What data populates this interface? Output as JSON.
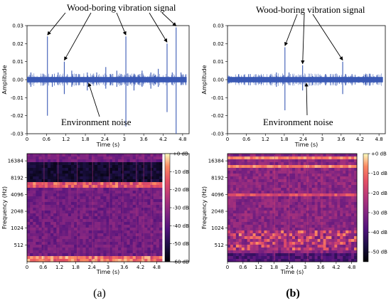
{
  "figure": {
    "panel_a": "(a)",
    "panel_b": "(b)",
    "signal_label": "Wood-boring vibration signal",
    "noise_label": "Environment noise"
  },
  "chart_data": [
    {
      "id": "a_wave",
      "type": "line",
      "title": "",
      "xlabel": "Time (s)",
      "ylabel": "Amplitude",
      "xlim": [
        0,
        5.0
      ],
      "ylim": [
        -0.03,
        0.03
      ],
      "xticks": [
        0,
        0.6,
        1.2,
        1.8,
        2.4,
        3,
        3.6,
        4.2,
        4.8
      ],
      "xtick_labels": [
        "0",
        "0.6",
        "1.2",
        "1.8",
        "2.4",
        "3",
        "3.6",
        "4.2",
        "4.8"
      ],
      "yticks": [
        -0.03,
        -0.02,
        -0.01,
        0.0,
        0.01,
        0.02,
        0.03
      ],
      "ytick_labels": [
        "-0.03",
        "-0.02",
        "-0.01",
        "0.00",
        "0.01",
        "0.02",
        "0.03"
      ],
      "noise_band": [
        -0.0015,
        0.0015
      ],
      "line_color": "#3a59b4",
      "spikes": [
        {
          "x": 0.12,
          "top": 0.004,
          "bottom": -0.004
        },
        {
          "x": 0.52,
          "top": 0.003,
          "bottom": -0.003
        },
        {
          "x": 0.63,
          "top": 0.024,
          "bottom": -0.02
        },
        {
          "x": 0.78,
          "top": 0.003,
          "bottom": -0.004
        },
        {
          "x": 0.96,
          "top": 0.004,
          "bottom": -0.003
        },
        {
          "x": 1.15,
          "top": 0.01,
          "bottom": -0.008
        },
        {
          "x": 1.38,
          "top": 0.005,
          "bottom": -0.004
        },
        {
          "x": 1.62,
          "top": 0.003,
          "bottom": -0.003
        },
        {
          "x": 1.86,
          "top": 0.004,
          "bottom": -0.006
        },
        {
          "x": 2.15,
          "top": 0.004,
          "bottom": -0.003
        },
        {
          "x": 2.43,
          "top": 0.007,
          "bottom": -0.005
        },
        {
          "x": 2.58,
          "top": 0.003,
          "bottom": -0.003
        },
        {
          "x": 2.77,
          "top": 0.005,
          "bottom": -0.004
        },
        {
          "x": 2.9,
          "top": 0.003,
          "bottom": -0.003
        },
        {
          "x": 3.05,
          "top": 0.024,
          "bottom": -0.026
        },
        {
          "x": 3.3,
          "top": 0.003,
          "bottom": -0.006
        },
        {
          "x": 3.55,
          "top": 0.005,
          "bottom": -0.004
        },
        {
          "x": 3.82,
          "top": 0.004,
          "bottom": -0.005
        },
        {
          "x": 4.05,
          "top": 0.006,
          "bottom": -0.004
        },
        {
          "x": 4.32,
          "top": 0.02,
          "bottom": -0.018
        },
        {
          "x": 4.48,
          "top": 0.004,
          "bottom": -0.003
        },
        {
          "x": 4.6,
          "top": 0.029,
          "bottom": -0.03
        },
        {
          "x": 4.75,
          "top": 0.004,
          "bottom": -0.003
        },
        {
          "x": 4.9,
          "top": 0.003,
          "bottom": -0.003
        }
      ],
      "signal_arrow_targets": [
        {
          "x": 0.63,
          "y": 0.024
        },
        {
          "x": 1.15,
          "y": 0.01
        },
        {
          "x": 3.05,
          "y": 0.024
        },
        {
          "x": 4.32,
          "y": 0.02
        },
        {
          "x": 4.6,
          "y": 0.029
        }
      ],
      "noise_arrow_target": {
        "x": 1.9,
        "y": -0.0015
      }
    },
    {
      "id": "b_wave",
      "type": "line",
      "title": "",
      "xlabel": "Time (s)",
      "ylabel": "Amplitude",
      "xlim": [
        0,
        5.0
      ],
      "ylim": [
        -0.03,
        0.03
      ],
      "xticks": [
        0,
        0.6,
        1.2,
        1.8,
        2.4,
        3,
        3.6,
        4.2,
        4.8
      ],
      "xtick_labels": [
        "0",
        "0.6",
        "1.2",
        "1.8",
        "2.4",
        "3",
        "3.6",
        "4.2",
        "4.8"
      ],
      "yticks": [
        -0.03,
        -0.02,
        -0.01,
        0.0,
        0.01,
        0.02,
        0.03
      ],
      "ytick_labels": [
        "-0.03",
        "-0.02",
        "-0.01",
        "0.00",
        "0.01",
        "0.02",
        "0.03"
      ],
      "noise_band": [
        -0.0015,
        0.0015
      ],
      "line_color": "#3a59b4",
      "spikes": [
        {
          "x": 0.35,
          "top": 0.003,
          "bottom": -0.002
        },
        {
          "x": 0.9,
          "top": 0.003,
          "bottom": -0.003
        },
        {
          "x": 1.55,
          "top": 0.004,
          "bottom": -0.004
        },
        {
          "x": 1.82,
          "top": 0.018,
          "bottom": -0.017
        },
        {
          "x": 1.95,
          "top": 0.004,
          "bottom": -0.003
        },
        {
          "x": 2.38,
          "top": 0.008,
          "bottom": -0.006
        },
        {
          "x": 2.7,
          "top": 0.002,
          "bottom": -0.003
        },
        {
          "x": 3.1,
          "top": 0.003,
          "bottom": -0.003
        },
        {
          "x": 3.65,
          "top": 0.01,
          "bottom": -0.008
        },
        {
          "x": 3.75,
          "top": 0.003,
          "bottom": -0.003
        },
        {
          "x": 4.3,
          "top": 0.002,
          "bottom": -0.002
        }
      ],
      "signal_arrow_targets": [
        {
          "x": 1.82,
          "y": 0.018
        },
        {
          "x": 2.38,
          "y": 0.008
        },
        {
          "x": 3.65,
          "y": 0.01
        }
      ],
      "noise_arrow_target": {
        "x": 2.5,
        "y": -0.0015
      }
    },
    {
      "id": "a_spec",
      "type": "heatmap",
      "title": "",
      "xlabel": "Time (s)",
      "ylabel": "Frequency (Hz)",
      "xlim": [
        0,
        5.0
      ],
      "xticks": [
        0,
        0.6,
        1.2,
        1.8,
        2.4,
        3,
        3.6,
        4.2,
        4.8
      ],
      "xtick_labels": [
        "0",
        "0.6",
        "1.2",
        "1.8",
        "2.4",
        "3",
        "3.6",
        "4.2",
        "4.8"
      ],
      "y_scale": "log2",
      "yticks": [
        512,
        1024,
        2048,
        4096,
        8192,
        16384
      ],
      "ytick_labels": [
        "512",
        "1024",
        "2048",
        "4096",
        "8192",
        "16384"
      ],
      "colorbar_ticks": [
        0,
        -10,
        -20,
        -30,
        -40,
        -50,
        -60
      ],
      "colorbar_labels": [
        "+0 dB",
        "-10 dB",
        "-20 dB",
        "-30 dB",
        "-40 dB",
        "-50 dB",
        "-60 dB"
      ],
      "colorbar_range": [
        -60,
        0
      ],
      "bright_rows_hz": [
        8192,
        300
      ],
      "dark_band_hz": [
        9500,
        15000
      ]
    },
    {
      "id": "b_spec",
      "type": "heatmap",
      "title": "",
      "xlabel": "Time (s)",
      "ylabel": "Frequency (Hz)",
      "xlim": [
        0,
        5.0
      ],
      "xticks": [
        0,
        0.6,
        1.2,
        1.8,
        2.4,
        3,
        3.6,
        4.2,
        4.8
      ],
      "xtick_labels": [
        "0",
        "0.6",
        "1.2",
        "1.8",
        "2.4",
        "3",
        "3.6",
        "4.2",
        "4.8"
      ],
      "y_scale": "log2",
      "yticks": [
        512,
        1024,
        2048,
        4096,
        8192,
        16384
      ],
      "ytick_labels": [
        "512",
        "1024",
        "2048",
        "4096",
        "8192",
        "16384"
      ],
      "colorbar_ticks": [
        0,
        -10,
        -20,
        -30,
        -40,
        -50
      ],
      "colorbar_labels": [
        "+0 dB",
        "-10 dB",
        "-20 dB",
        "-30 dB",
        "-40 dB",
        "-50 dB"
      ],
      "colorbar_range": [
        -55,
        0
      ],
      "bright_rows_hz": [
        16384,
        13000,
        5000,
        700
      ],
      "dark_band_hz": []
    }
  ]
}
